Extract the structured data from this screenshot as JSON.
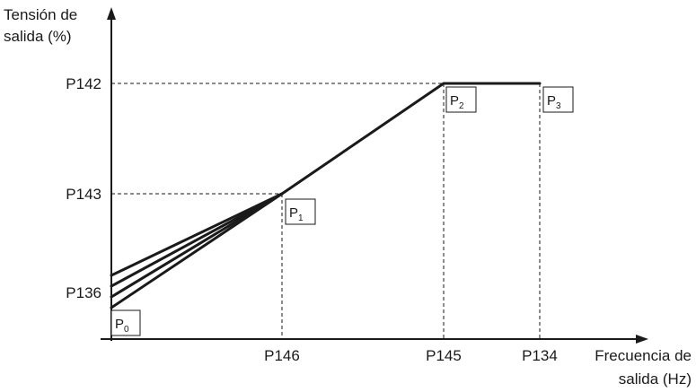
{
  "y_axis_label": [
    "Tensión de",
    "salida (%)"
  ],
  "x_axis_label": [
    "Frecuencia de",
    "salida (Hz)"
  ],
  "y_ticks": {
    "p142": "P142",
    "p143": "P143",
    "p136": "P136"
  },
  "x_ticks": {
    "p146": "P146",
    "p145": "P145",
    "p134": "P134"
  },
  "points": [
    {
      "base": "P",
      "sub": "0"
    },
    {
      "base": "P",
      "sub": "1"
    },
    {
      "base": "P",
      "sub": "2"
    },
    {
      "base": "P",
      "sub": "3"
    }
  ],
  "colors": {
    "ink": "#1a1a1a"
  }
}
